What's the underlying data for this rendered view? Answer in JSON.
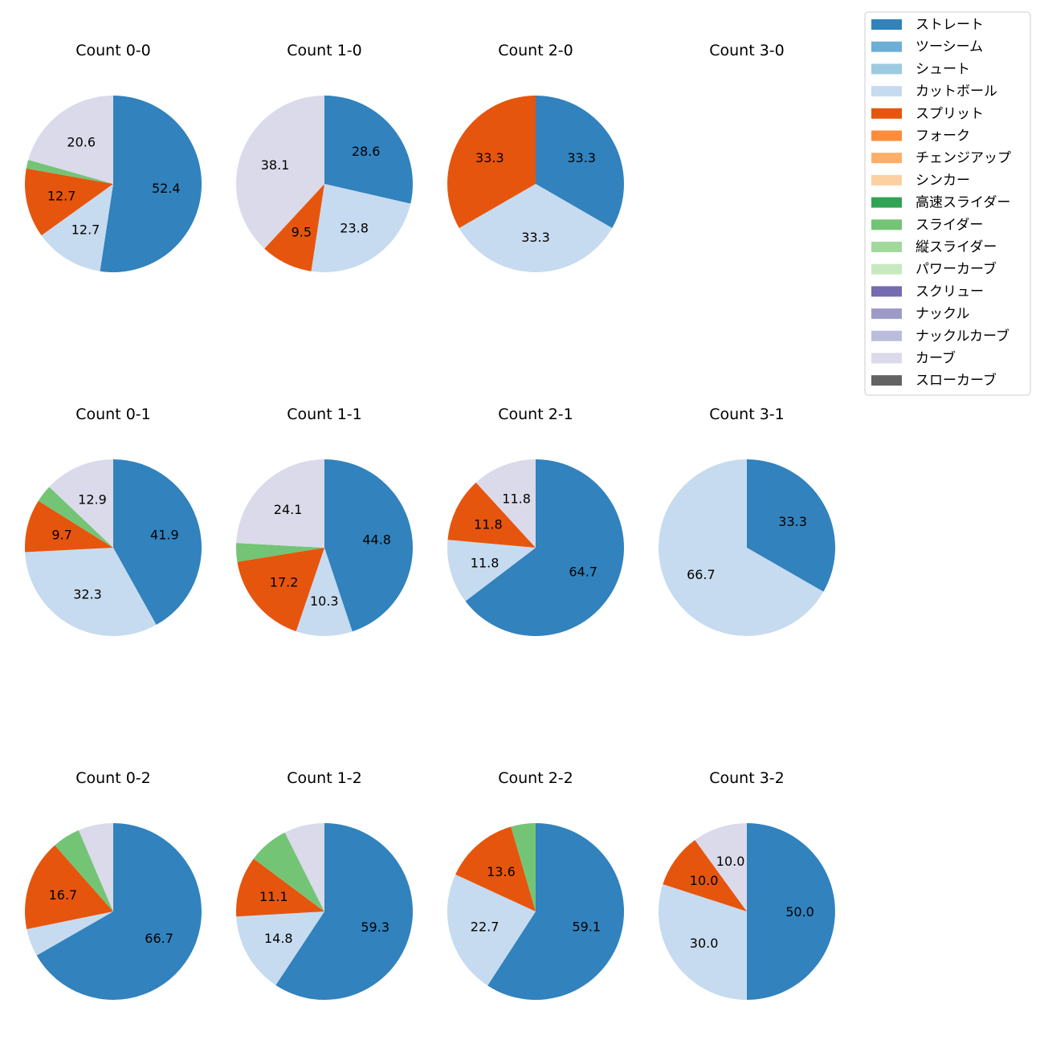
{
  "pitch_types": [
    {
      "name": "ストレート",
      "color": "#3182bd"
    },
    {
      "name": "ツーシーム",
      "color": "#6baed6"
    },
    {
      "name": "シュート",
      "color": "#9ecae1"
    },
    {
      "name": "カットボール",
      "color": "#c6dbef"
    },
    {
      "name": "スプリット",
      "color": "#e6550d"
    },
    {
      "name": "フォーク",
      "color": "#fd8d3c"
    },
    {
      "name": "チェンジアップ",
      "color": "#fdae6b"
    },
    {
      "name": "シンカー",
      "color": "#fdd0a2"
    },
    {
      "name": "高速スライダー",
      "color": "#31a354"
    },
    {
      "name": "スライダー",
      "color": "#74c476"
    },
    {
      "name": "縦スライダー",
      "color": "#a1d99b"
    },
    {
      "name": "パワーカーブ",
      "color": "#c7e9c0"
    },
    {
      "name": "スクリュー",
      "color": "#756bb1"
    },
    {
      "name": "ナックル",
      "color": "#9e9ac8"
    },
    {
      "name": "ナックルカーブ",
      "color": "#bcbddc"
    },
    {
      "name": "カーブ",
      "color": "#dadaeb"
    },
    {
      "name": "スローカーブ",
      "color": "#636363"
    }
  ],
  "chart_data": [
    {
      "type": "pie",
      "title": "Count 0-0",
      "slices": [
        {
          "category": "ストレート",
          "value": 52.4,
          "label": "52.4"
        },
        {
          "category": "カットボール",
          "value": 12.7,
          "label": "12.7"
        },
        {
          "category": "スプリット",
          "value": 12.7,
          "label": "12.7"
        },
        {
          "category": "スライダー",
          "value": 1.6,
          "label": ""
        },
        {
          "category": "カーブ",
          "value": 20.6,
          "label": "20.6"
        }
      ]
    },
    {
      "type": "pie",
      "title": "Count 1-0",
      "slices": [
        {
          "category": "ストレート",
          "value": 28.6,
          "label": "28.6"
        },
        {
          "category": "カットボール",
          "value": 23.8,
          "label": "23.8"
        },
        {
          "category": "スプリット",
          "value": 9.5,
          "label": "9.5"
        },
        {
          "category": "カーブ",
          "value": 38.1,
          "label": "38.1"
        }
      ]
    },
    {
      "type": "pie",
      "title": "Count 2-0",
      "slices": [
        {
          "category": "ストレート",
          "value": 33.3,
          "label": "33.3"
        },
        {
          "category": "カットボール",
          "value": 33.3,
          "label": "33.3"
        },
        {
          "category": "スプリット",
          "value": 33.3,
          "label": "33.3"
        }
      ]
    },
    {
      "type": "pie",
      "title": "Count 3-0",
      "slices": []
    },
    {
      "type": "pie",
      "title": "Count 0-1",
      "slices": [
        {
          "category": "ストレート",
          "value": 41.9,
          "label": "41.9"
        },
        {
          "category": "カットボール",
          "value": 32.3,
          "label": "32.3"
        },
        {
          "category": "スプリット",
          "value": 9.7,
          "label": "9.7"
        },
        {
          "category": "スライダー",
          "value": 3.2,
          "label": ""
        },
        {
          "category": "カーブ",
          "value": 12.9,
          "label": "12.9"
        }
      ]
    },
    {
      "type": "pie",
      "title": "Count 1-1",
      "slices": [
        {
          "category": "ストレート",
          "value": 44.8,
          "label": "44.8"
        },
        {
          "category": "カットボール",
          "value": 10.3,
          "label": "10.3"
        },
        {
          "category": "スプリット",
          "value": 17.2,
          "label": "17.2"
        },
        {
          "category": "スライダー",
          "value": 3.4,
          "label": ""
        },
        {
          "category": "カーブ",
          "value": 24.1,
          "label": "24.1"
        }
      ]
    },
    {
      "type": "pie",
      "title": "Count 2-1",
      "slices": [
        {
          "category": "ストレート",
          "value": 64.7,
          "label": "64.7"
        },
        {
          "category": "カットボール",
          "value": 11.8,
          "label": "11.8"
        },
        {
          "category": "スプリット",
          "value": 11.8,
          "label": "11.8"
        },
        {
          "category": "カーブ",
          "value": 11.8,
          "label": "11.8"
        }
      ]
    },
    {
      "type": "pie",
      "title": "Count 3-1",
      "slices": [
        {
          "category": "ストレート",
          "value": 33.3,
          "label": "33.3"
        },
        {
          "category": "カットボール",
          "value": 66.7,
          "label": "66.7"
        }
      ]
    },
    {
      "type": "pie",
      "title": "Count 0-2",
      "slices": [
        {
          "category": "ストレート",
          "value": 66.7,
          "label": "66.7"
        },
        {
          "category": "カットボール",
          "value": 5.1,
          "label": ""
        },
        {
          "category": "スプリット",
          "value": 16.7,
          "label": "16.7"
        },
        {
          "category": "スライダー",
          "value": 5.1,
          "label": ""
        },
        {
          "category": "カーブ",
          "value": 6.4,
          "label": ""
        }
      ]
    },
    {
      "type": "pie",
      "title": "Count 1-2",
      "slices": [
        {
          "category": "ストレート",
          "value": 59.3,
          "label": "59.3"
        },
        {
          "category": "カットボール",
          "value": 14.8,
          "label": "14.8"
        },
        {
          "category": "スプリット",
          "value": 11.1,
          "label": "11.1"
        },
        {
          "category": "スライダー",
          "value": 7.4,
          "label": ""
        },
        {
          "category": "カーブ",
          "value": 7.4,
          "label": ""
        }
      ]
    },
    {
      "type": "pie",
      "title": "Count 2-2",
      "slices": [
        {
          "category": "ストレート",
          "value": 59.1,
          "label": "59.1"
        },
        {
          "category": "カットボール",
          "value": 22.7,
          "label": "22.7"
        },
        {
          "category": "スプリット",
          "value": 13.6,
          "label": "13.6"
        },
        {
          "category": "スライダー",
          "value": 4.5,
          "label": ""
        }
      ]
    },
    {
      "type": "pie",
      "title": "Count 3-2",
      "slices": [
        {
          "category": "ストレート",
          "value": 50.0,
          "label": "50.0"
        },
        {
          "category": "カットボール",
          "value": 30.0,
          "label": "30.0"
        },
        {
          "category": "スプリット",
          "value": 10.0,
          "label": "10.0"
        },
        {
          "category": "カーブ",
          "value": 10.0,
          "label": "10.0"
        }
      ]
    }
  ]
}
